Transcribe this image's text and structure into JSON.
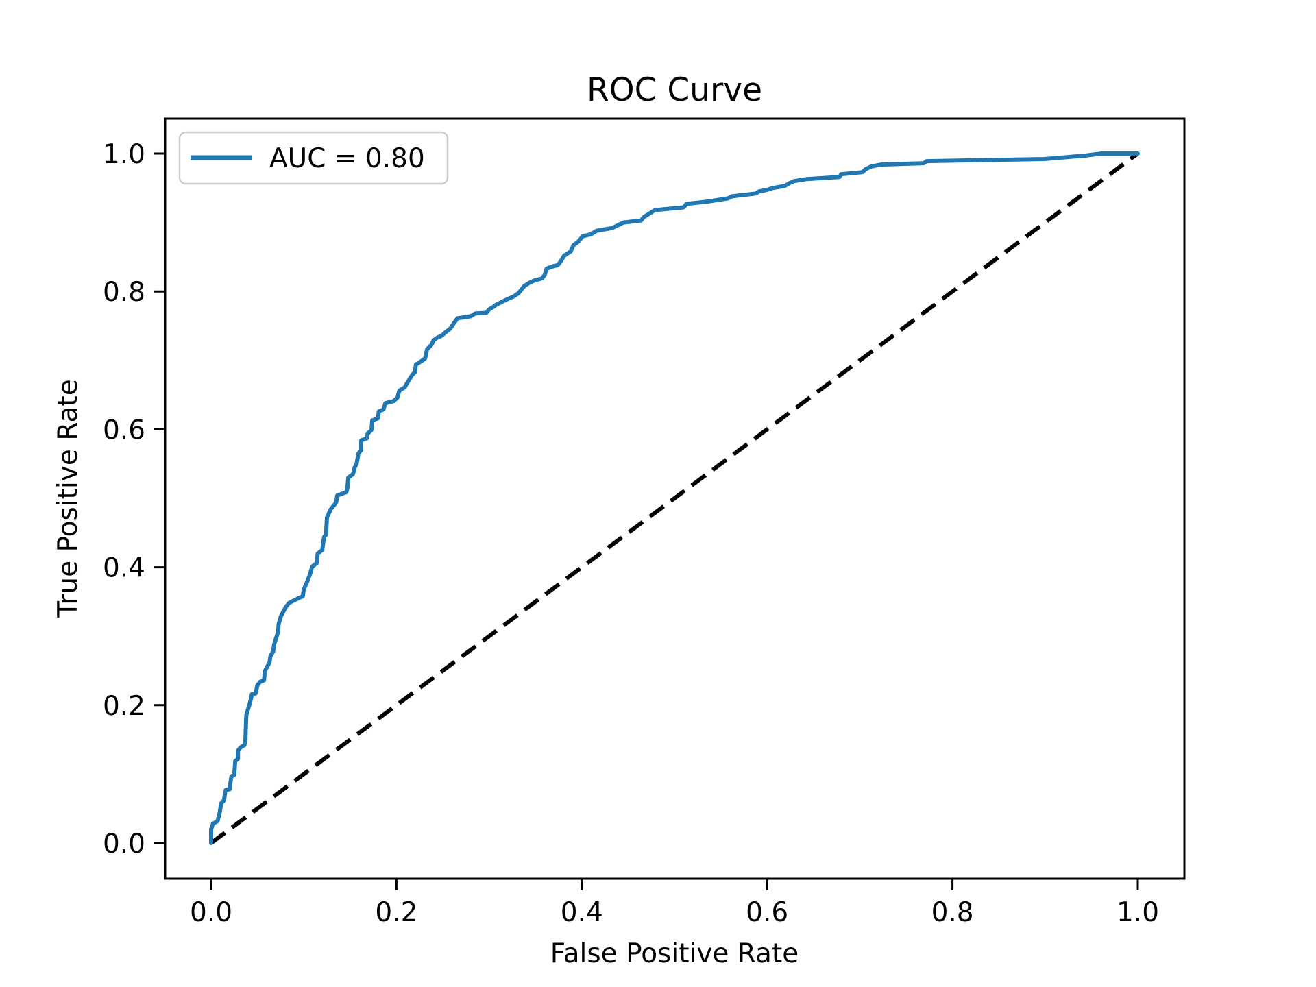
{
  "title": "ROC Curve",
  "axes": {
    "xlabel": "False Positive Rate",
    "ylabel": "True Positive Rate",
    "x_tick_labels": [
      "0.0",
      "0.2",
      "0.4",
      "0.6",
      "0.8",
      "1.0"
    ],
    "y_tick_labels": [
      "0.0",
      "0.2",
      "0.4",
      "0.6",
      "0.8",
      "1.0"
    ]
  },
  "legend": {
    "label": "AUC = 0.80",
    "border_color": "#cccccc"
  },
  "auc": 0.8,
  "colors": {
    "roc_curve": "#1f77b4",
    "diagonal": "#000000",
    "spine": "#000000",
    "background": "#ffffff"
  },
  "chart_data": {
    "type": "line",
    "title": "ROC Curve",
    "xlabel": "False Positive Rate",
    "ylabel": "True Positive Rate",
    "xlim": [
      -0.05,
      1.05
    ],
    "ylim": [
      -0.05,
      1.05
    ],
    "grid": false,
    "legend_position": "upper left",
    "x_ticks": [
      0.0,
      0.2,
      0.4,
      0.6,
      0.8,
      1.0
    ],
    "y_ticks": [
      0.0,
      0.2,
      0.4,
      0.6,
      0.8,
      1.0
    ],
    "series": [
      {
        "name": "AUC = 0.80",
        "color": "#1f77b4",
        "style": "solid",
        "points": [
          [
            0.0,
            0.0
          ],
          [
            0.0,
            0.02
          ],
          [
            0.002,
            0.028
          ],
          [
            0.007,
            0.032
          ],
          [
            0.009,
            0.043
          ],
          [
            0.011,
            0.058
          ],
          [
            0.014,
            0.062
          ],
          [
            0.015,
            0.073
          ],
          [
            0.016,
            0.077
          ],
          [
            0.02,
            0.078
          ],
          [
            0.021,
            0.089
          ],
          [
            0.022,
            0.097
          ],
          [
            0.025,
            0.099
          ],
          [
            0.026,
            0.119
          ],
          [
            0.029,
            0.122
          ],
          [
            0.029,
            0.134
          ],
          [
            0.032,
            0.139
          ],
          [
            0.036,
            0.142
          ],
          [
            0.037,
            0.149
          ],
          [
            0.038,
            0.186
          ],
          [
            0.041,
            0.199
          ],
          [
            0.043,
            0.209
          ],
          [
            0.044,
            0.216
          ],
          [
            0.048,
            0.217
          ],
          [
            0.05,
            0.229
          ],
          [
            0.053,
            0.234
          ],
          [
            0.057,
            0.236
          ],
          [
            0.058,
            0.249
          ],
          [
            0.059,
            0.252
          ],
          [
            0.063,
            0.262
          ],
          [
            0.064,
            0.271
          ],
          [
            0.067,
            0.278
          ],
          [
            0.068,
            0.288
          ],
          [
            0.072,
            0.305
          ],
          [
            0.073,
            0.318
          ],
          [
            0.075,
            0.328
          ],
          [
            0.078,
            0.336
          ],
          [
            0.081,
            0.343
          ],
          [
            0.084,
            0.348
          ],
          [
            0.088,
            0.351
          ],
          [
            0.094,
            0.355
          ],
          [
            0.099,
            0.358
          ],
          [
            0.1,
            0.368
          ],
          [
            0.104,
            0.38
          ],
          [
            0.107,
            0.391
          ],
          [
            0.109,
            0.401
          ],
          [
            0.114,
            0.406
          ],
          [
            0.115,
            0.42
          ],
          [
            0.12,
            0.425
          ],
          [
            0.121,
            0.436
          ],
          [
            0.122,
            0.444
          ],
          [
            0.124,
            0.447
          ],
          [
            0.125,
            0.472
          ],
          [
            0.129,
            0.484
          ],
          [
            0.132,
            0.489
          ],
          [
            0.135,
            0.494
          ],
          [
            0.136,
            0.504
          ],
          [
            0.146,
            0.509
          ],
          [
            0.147,
            0.514
          ],
          [
            0.148,
            0.53
          ],
          [
            0.153,
            0.535
          ],
          [
            0.155,
            0.545
          ],
          [
            0.157,
            0.55
          ],
          [
            0.159,
            0.565
          ],
          [
            0.162,
            0.57
          ],
          [
            0.162,
            0.584
          ],
          [
            0.168,
            0.587
          ],
          [
            0.169,
            0.594
          ],
          [
            0.173,
            0.599
          ],
          [
            0.174,
            0.613
          ],
          [
            0.18,
            0.616
          ],
          [
            0.181,
            0.626
          ],
          [
            0.186,
            0.629
          ],
          [
            0.188,
            0.638
          ],
          [
            0.197,
            0.641
          ],
          [
            0.201,
            0.646
          ],
          [
            0.203,
            0.656
          ],
          [
            0.209,
            0.661
          ],
          [
            0.211,
            0.666
          ],
          [
            0.217,
            0.679
          ],
          [
            0.22,
            0.683
          ],
          [
            0.221,
            0.694
          ],
          [
            0.227,
            0.699
          ],
          [
            0.231,
            0.703
          ],
          [
            0.233,
            0.716
          ],
          [
            0.238,
            0.723
          ],
          [
            0.24,
            0.729
          ],
          [
            0.244,
            0.733
          ],
          [
            0.249,
            0.736
          ],
          [
            0.253,
            0.741
          ],
          [
            0.258,
            0.746
          ],
          [
            0.263,
            0.756
          ],
          [
            0.266,
            0.761
          ],
          [
            0.28,
            0.764
          ],
          [
            0.285,
            0.768
          ],
          [
            0.297,
            0.769
          ],
          [
            0.3,
            0.774
          ],
          [
            0.305,
            0.778
          ],
          [
            0.308,
            0.781
          ],
          [
            0.32,
            0.789
          ],
          [
            0.327,
            0.793
          ],
          [
            0.332,
            0.798
          ],
          [
            0.338,
            0.808
          ],
          [
            0.344,
            0.813
          ],
          [
            0.349,
            0.816
          ],
          [
            0.357,
            0.819
          ],
          [
            0.36,
            0.824
          ],
          [
            0.362,
            0.833
          ],
          [
            0.37,
            0.837
          ],
          [
            0.374,
            0.838
          ],
          [
            0.377,
            0.843
          ],
          [
            0.381,
            0.852
          ],
          [
            0.388,
            0.858
          ],
          [
            0.391,
            0.867
          ],
          [
            0.396,
            0.872
          ],
          [
            0.401,
            0.88
          ],
          [
            0.41,
            0.883
          ],
          [
            0.416,
            0.888
          ],
          [
            0.433,
            0.892
          ],
          [
            0.445,
            0.9
          ],
          [
            0.464,
            0.903
          ],
          [
            0.467,
            0.908
          ],
          [
            0.473,
            0.913
          ],
          [
            0.479,
            0.918
          ],
          [
            0.51,
            0.922
          ],
          [
            0.513,
            0.927
          ],
          [
            0.534,
            0.93
          ],
          [
            0.558,
            0.935
          ],
          [
            0.562,
            0.938
          ],
          [
            0.588,
            0.942
          ],
          [
            0.591,
            0.945
          ],
          [
            0.599,
            0.947
          ],
          [
            0.606,
            0.95
          ],
          [
            0.619,
            0.953
          ],
          [
            0.624,
            0.957
          ],
          [
            0.629,
            0.96
          ],
          [
            0.643,
            0.963
          ],
          [
            0.678,
            0.966
          ],
          [
            0.68,
            0.97
          ],
          [
            0.703,
            0.973
          ],
          [
            0.706,
            0.977
          ],
          [
            0.712,
            0.981
          ],
          [
            0.723,
            0.984
          ],
          [
            0.769,
            0.986
          ],
          [
            0.772,
            0.989
          ],
          [
            0.899,
            0.992
          ],
          [
            0.943,
            0.997
          ],
          [
            0.961,
            1.0
          ],
          [
            1.0,
            1.0
          ]
        ]
      },
      {
        "name": "chance-diagonal",
        "color": "#000000",
        "style": "dashed",
        "points": [
          [
            0.0,
            0.0
          ],
          [
            1.0,
            1.0
          ]
        ]
      }
    ]
  }
}
